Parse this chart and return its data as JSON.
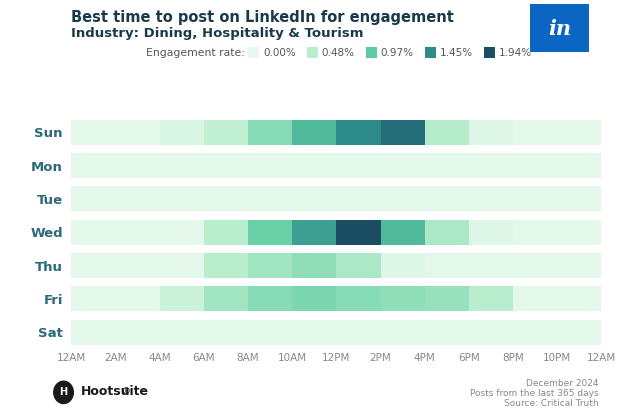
{
  "title_line1": "Best time to post on LinkedIn for engagement",
  "title_line2": "Industry: Dining, Hospitality & Tourism",
  "days": [
    "Sun",
    "Mon",
    "Tue",
    "Wed",
    "Thu",
    "Fri",
    "Sat"
  ],
  "hours": [
    "12AM",
    "2AM",
    "4AM",
    "6AM",
    "8AM",
    "10AM",
    "12PM",
    "2PM",
    "4PM",
    "6PM",
    "8PM",
    "10PM",
    "12AM"
  ],
  "legend_labels": [
    "0.00%",
    "0.48%",
    "0.97%",
    "1.45%",
    "1.94%"
  ],
  "legend_values": [
    0.0,
    0.48,
    0.97,
    1.45,
    1.94
  ],
  "background_color": "#ffffff",
  "footer_right1": "December 2024",
  "footer_right2": "Posts from the last 365 days",
  "footer_right3": "Source: Critical Truth",
  "title_color": "#1a3a4a",
  "day_label_color": "#2a6a7a",
  "tick_color": "#888888",
  "heatmap_data": [
    [
      0.05,
      0.05,
      0.15,
      0.4,
      0.75,
      1.1,
      1.45,
      1.7,
      0.5,
      0.1,
      0.05,
      0.05
    ],
    [
      0.05,
      0.05,
      0.05,
      0.05,
      0.05,
      0.05,
      0.05,
      0.05,
      0.05,
      0.05,
      0.05,
      0.05
    ],
    [
      0.05,
      0.05,
      0.05,
      0.05,
      0.05,
      0.05,
      0.05,
      0.05,
      0.05,
      0.05,
      0.05,
      0.05
    ],
    [
      0.05,
      0.05,
      0.05,
      0.48,
      0.9,
      1.3,
      1.94,
      1.1,
      0.55,
      0.1,
      0.05,
      0.05
    ],
    [
      0.05,
      0.05,
      0.05,
      0.48,
      0.6,
      0.7,
      0.55,
      0.1,
      0.05,
      0.05,
      0.05,
      0.05
    ],
    [
      0.05,
      0.05,
      0.3,
      0.6,
      0.75,
      0.8,
      0.75,
      0.7,
      0.65,
      0.48,
      0.05,
      0.05
    ],
    [
      0.05,
      0.05,
      0.05,
      0.05,
      0.05,
      0.05,
      0.05,
      0.05,
      0.05,
      0.05,
      0.05,
      0.05
    ]
  ],
  "colormap_colors": [
    "#e8f8ed",
    "#b8edce",
    "#5dcba0",
    "#2e8b8b",
    "#1b4e63"
  ],
  "colormap_values": [
    0.0,
    0.48,
    0.97,
    1.45,
    1.94
  ],
  "linkedin_color": "#0a66c2",
  "row_bg_color": "#eef9f2"
}
